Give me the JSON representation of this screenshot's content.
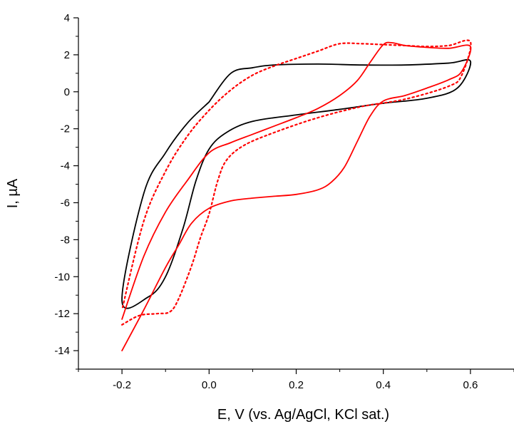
{
  "chart_data": {
    "type": "line",
    "title": "",
    "xlabel": "E, V (vs. Ag/AgCl, KCl sat.)",
    "ylabel": "I, µA",
    "xlim": [
      -0.3,
      0.7
    ],
    "ylim": [
      -15,
      4
    ],
    "xticks": [
      -0.2,
      0.0,
      0.2,
      0.4,
      0.6
    ],
    "xtick_labels": [
      "-0.2",
      "0.0",
      "0.2",
      "0.4",
      "0.6"
    ],
    "yticks": [
      -14,
      -12,
      -10,
      -8,
      -6,
      -4,
      -2,
      0,
      2,
      4
    ],
    "ytick_labels": [
      "-14",
      "-12",
      "-10",
      "-8",
      "-6",
      "-4",
      "-2",
      "0",
      "2",
      "4"
    ],
    "grid": false,
    "legend": "none",
    "series": [
      {
        "color": "#000000",
        "style": "solid",
        "points": [
          [
            0.0,
            -0.55
          ],
          [
            -0.05,
            -1.7
          ],
          [
            -0.1,
            -3.3
          ],
          [
            -0.15,
            -5.5
          ],
          [
            -0.2,
            -11.3
          ],
          [
            -0.14,
            -11.1
          ],
          [
            -0.1,
            -10.0
          ],
          [
            -0.06,
            -7.4
          ],
          [
            -0.03,
            -4.8
          ],
          [
            0.0,
            -3.1
          ],
          [
            0.04,
            -2.2
          ],
          [
            0.1,
            -1.6
          ],
          [
            0.2,
            -1.25
          ],
          [
            0.3,
            -0.95
          ],
          [
            0.4,
            -0.62
          ],
          [
            0.5,
            -0.35
          ],
          [
            0.57,
            0.2
          ],
          [
            0.6,
            1.65
          ],
          [
            0.55,
            1.55
          ],
          [
            0.45,
            1.45
          ],
          [
            0.35,
            1.45
          ],
          [
            0.25,
            1.5
          ],
          [
            0.15,
            1.45
          ],
          [
            0.1,
            1.3
          ],
          [
            0.05,
            1.0
          ],
          [
            0.0,
            -0.55
          ]
        ]
      },
      {
        "color": "#ff0000",
        "style": "solid",
        "points": [
          [
            -0.2,
            -14.0
          ],
          [
            -0.15,
            -11.8
          ],
          [
            -0.1,
            -9.5
          ],
          [
            -0.07,
            -8.3
          ],
          [
            -0.04,
            -7.1
          ],
          [
            0.0,
            -6.3
          ],
          [
            0.05,
            -5.9
          ],
          [
            0.1,
            -5.75
          ],
          [
            0.15,
            -5.65
          ],
          [
            0.2,
            -5.55
          ],
          [
            0.25,
            -5.3
          ],
          [
            0.28,
            -4.9
          ],
          [
            0.31,
            -4.1
          ],
          [
            0.34,
            -2.7
          ],
          [
            0.37,
            -1.3
          ],
          [
            0.4,
            -0.5
          ],
          [
            0.45,
            -0.2
          ],
          [
            0.5,
            0.2
          ],
          [
            0.55,
            0.65
          ],
          [
            0.58,
            1.1
          ],
          [
            0.6,
            2.45
          ],
          [
            0.55,
            2.35
          ],
          [
            0.5,
            2.4
          ],
          [
            0.45,
            2.5
          ],
          [
            0.42,
            2.65
          ],
          [
            0.4,
            2.55
          ],
          [
            0.37,
            1.6
          ],
          [
            0.34,
            0.6
          ],
          [
            0.3,
            -0.2
          ],
          [
            0.25,
            -0.9
          ],
          [
            0.2,
            -1.4
          ],
          [
            0.15,
            -1.85
          ],
          [
            0.1,
            -2.3
          ],
          [
            0.05,
            -2.75
          ],
          [
            0.0,
            -3.3
          ],
          [
            -0.05,
            -4.8
          ],
          [
            -0.1,
            -6.5
          ],
          [
            -0.15,
            -8.9
          ],
          [
            -0.2,
            -12.3
          ]
        ]
      },
      {
        "color": "#ff0000",
        "style": "dotted",
        "points": [
          [
            -0.2,
            -12.6
          ],
          [
            -0.16,
            -12.1
          ],
          [
            -0.12,
            -12.0
          ],
          [
            -0.09,
            -11.9
          ],
          [
            -0.07,
            -11.2
          ],
          [
            -0.04,
            -9.4
          ],
          [
            -0.02,
            -7.9
          ],
          [
            0.0,
            -6.6
          ],
          [
            0.02,
            -4.8
          ],
          [
            0.04,
            -3.7
          ],
          [
            0.08,
            -2.9
          ],
          [
            0.15,
            -2.2
          ],
          [
            0.25,
            -1.4
          ],
          [
            0.35,
            -0.8
          ],
          [
            0.45,
            -0.4
          ],
          [
            0.55,
            0.3
          ],
          [
            0.58,
            0.9
          ],
          [
            0.6,
            2.7
          ],
          [
            0.55,
            2.5
          ],
          [
            0.5,
            2.45
          ],
          [
            0.45,
            2.5
          ],
          [
            0.4,
            2.55
          ],
          [
            0.35,
            2.6
          ],
          [
            0.3,
            2.6
          ],
          [
            0.25,
            2.2
          ],
          [
            0.2,
            1.8
          ],
          [
            0.15,
            1.4
          ],
          [
            0.1,
            0.9
          ],
          [
            0.05,
            0.1
          ],
          [
            0.0,
            -1.0
          ],
          [
            -0.05,
            -2.4
          ],
          [
            -0.1,
            -4.3
          ],
          [
            -0.15,
            -7.0
          ],
          [
            -0.2,
            -11.8
          ]
        ]
      }
    ]
  }
}
